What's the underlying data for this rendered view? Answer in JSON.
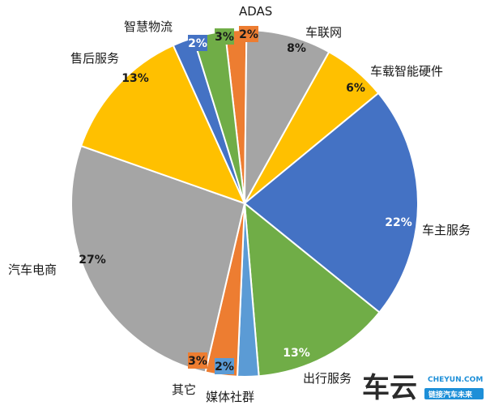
{
  "chart_data": {
    "type": "pie",
    "title": "",
    "start_angle_deg": -6.5,
    "direction": "clockwise",
    "slices": [
      {
        "label": "ADAS",
        "value": 2,
        "pct_text": "2%",
        "color": "#ED7D31",
        "pct_color": "#1a1a1a"
      },
      {
        "label": "车联网",
        "value": 8,
        "pct_text": "8%",
        "color": "#A5A5A5",
        "pct_color": "#1a1a1a"
      },
      {
        "label": "车载智能硬件",
        "value": 6,
        "pct_text": "6%",
        "color": "#FFC000",
        "pct_color": "#1a1a1a"
      },
      {
        "label": "车主服务",
        "value": 22,
        "pct_text": "22%",
        "color": "#4472C4",
        "pct_color": "#ffffff"
      },
      {
        "label": "出行服务",
        "value": 13,
        "pct_text": "13%",
        "color": "#70AD47",
        "pct_color": "#ffffff"
      },
      {
        "label": "媒体社群",
        "value": 2,
        "pct_text": "2%",
        "color": "#5B9BD5",
        "pct_color": "#1a1a1a"
      },
      {
        "label": "其它",
        "value": 3,
        "pct_text": "3%",
        "color": "#ED7D31",
        "pct_color": "#1a1a1a"
      },
      {
        "label": "汽车电商",
        "value": 27,
        "pct_text": "27%",
        "color": "#A5A5A5",
        "pct_color": "#1a1a1a"
      },
      {
        "label": "售后服务",
        "value": 13,
        "pct_text": "13%",
        "color": "#FFC000",
        "pct_color": "#1a1a1a"
      },
      {
        "label": "智慧物流",
        "value": 2,
        "pct_text": "2%",
        "color": "#4472C4",
        "pct_color": "#ffffff"
      },
      {
        "label": "",
        "value": 3,
        "pct_text": "3%",
        "color": "#70AD47",
        "pct_color": "#1a1a1a"
      }
    ]
  },
  "watermark": {
    "brand_cn": "车云",
    "site": "CHEYUN.COM",
    "slogan": "链接汽车未来",
    "brand_color": "#1d8fd8"
  }
}
